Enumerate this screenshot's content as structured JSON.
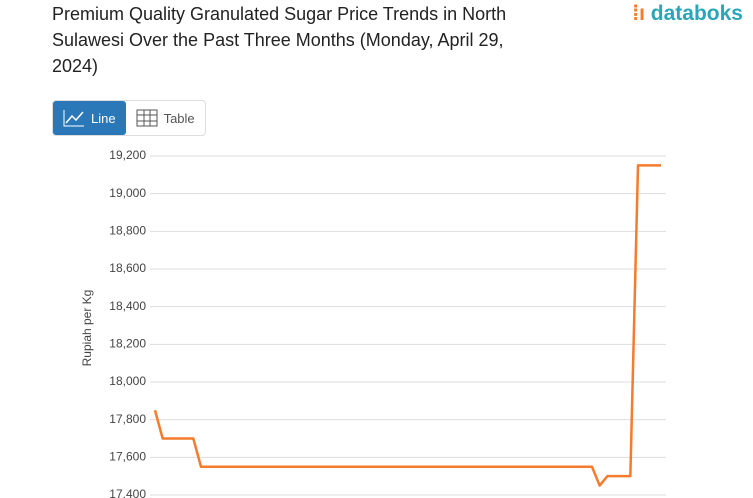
{
  "logo": "databoks",
  "buttons": {
    "line": "Line",
    "table": "Table"
  },
  "chart_data": {
    "type": "line",
    "title": "Premium Quality Granulated Sugar Price Trends in North Sulawesi Over the Past Three Months (Monday, April 29, 2024)",
    "y_label": "Rupiah per Kg",
    "color": "#f47c2e",
    "grid": true,
    "ylim": [
      17400,
      19200
    ],
    "yticks": [
      {
        "value": 17400,
        "label": "17,400"
      },
      {
        "value": 17600,
        "label": "17,600"
      },
      {
        "value": 17800,
        "label": "17,800"
      },
      {
        "value": 18000,
        "label": "18,000"
      },
      {
        "value": 18200,
        "label": "18,200"
      },
      {
        "value": 18400,
        "label": "18,400"
      },
      {
        "value": 18600,
        "label": "18,600"
      },
      {
        "value": 18800,
        "label": "18,800"
      },
      {
        "value": 19000,
        "label": "19,000"
      },
      {
        "value": 19200,
        "label": "19,200"
      }
    ],
    "categories": [
      null,
      null,
      null,
      null,
      null,
      null,
      null,
      null,
      null,
      null,
      null,
      null,
      null,
      null,
      null,
      null,
      null,
      null,
      null,
      null,
      null,
      null,
      null,
      null,
      null,
      null,
      null,
      null,
      null,
      null,
      null,
      null,
      null,
      null,
      null,
      null,
      null,
      null,
      null,
      null,
      null,
      null,
      null,
      null,
      null,
      null,
      null,
      null,
      null,
      null,
      null,
      null,
      null,
      null,
      null,
      null,
      null,
      null,
      null,
      null,
      null,
      null,
      null,
      null,
      null,
      null,
      null
    ],
    "values": [
      17850,
      17700,
      17700,
      17700,
      17700,
      17700,
      17550,
      17550,
      17550,
      17550,
      17550,
      17550,
      17550,
      17550,
      17550,
      17550,
      17550,
      17550,
      17550,
      17550,
      17550,
      17550,
      17550,
      17550,
      17550,
      17550,
      17550,
      17550,
      17550,
      17550,
      17550,
      17550,
      17550,
      17550,
      17550,
      17550,
      17550,
      17550,
      17550,
      17550,
      17550,
      17550,
      17550,
      17550,
      17550,
      17550,
      17550,
      17550,
      17550,
      17550,
      17550,
      17550,
      17550,
      17550,
      17550,
      17550,
      17550,
      17550,
      17450,
      17500,
      17500,
      17500,
      17500,
      19150,
      19150,
      19150,
      19150
    ]
  }
}
